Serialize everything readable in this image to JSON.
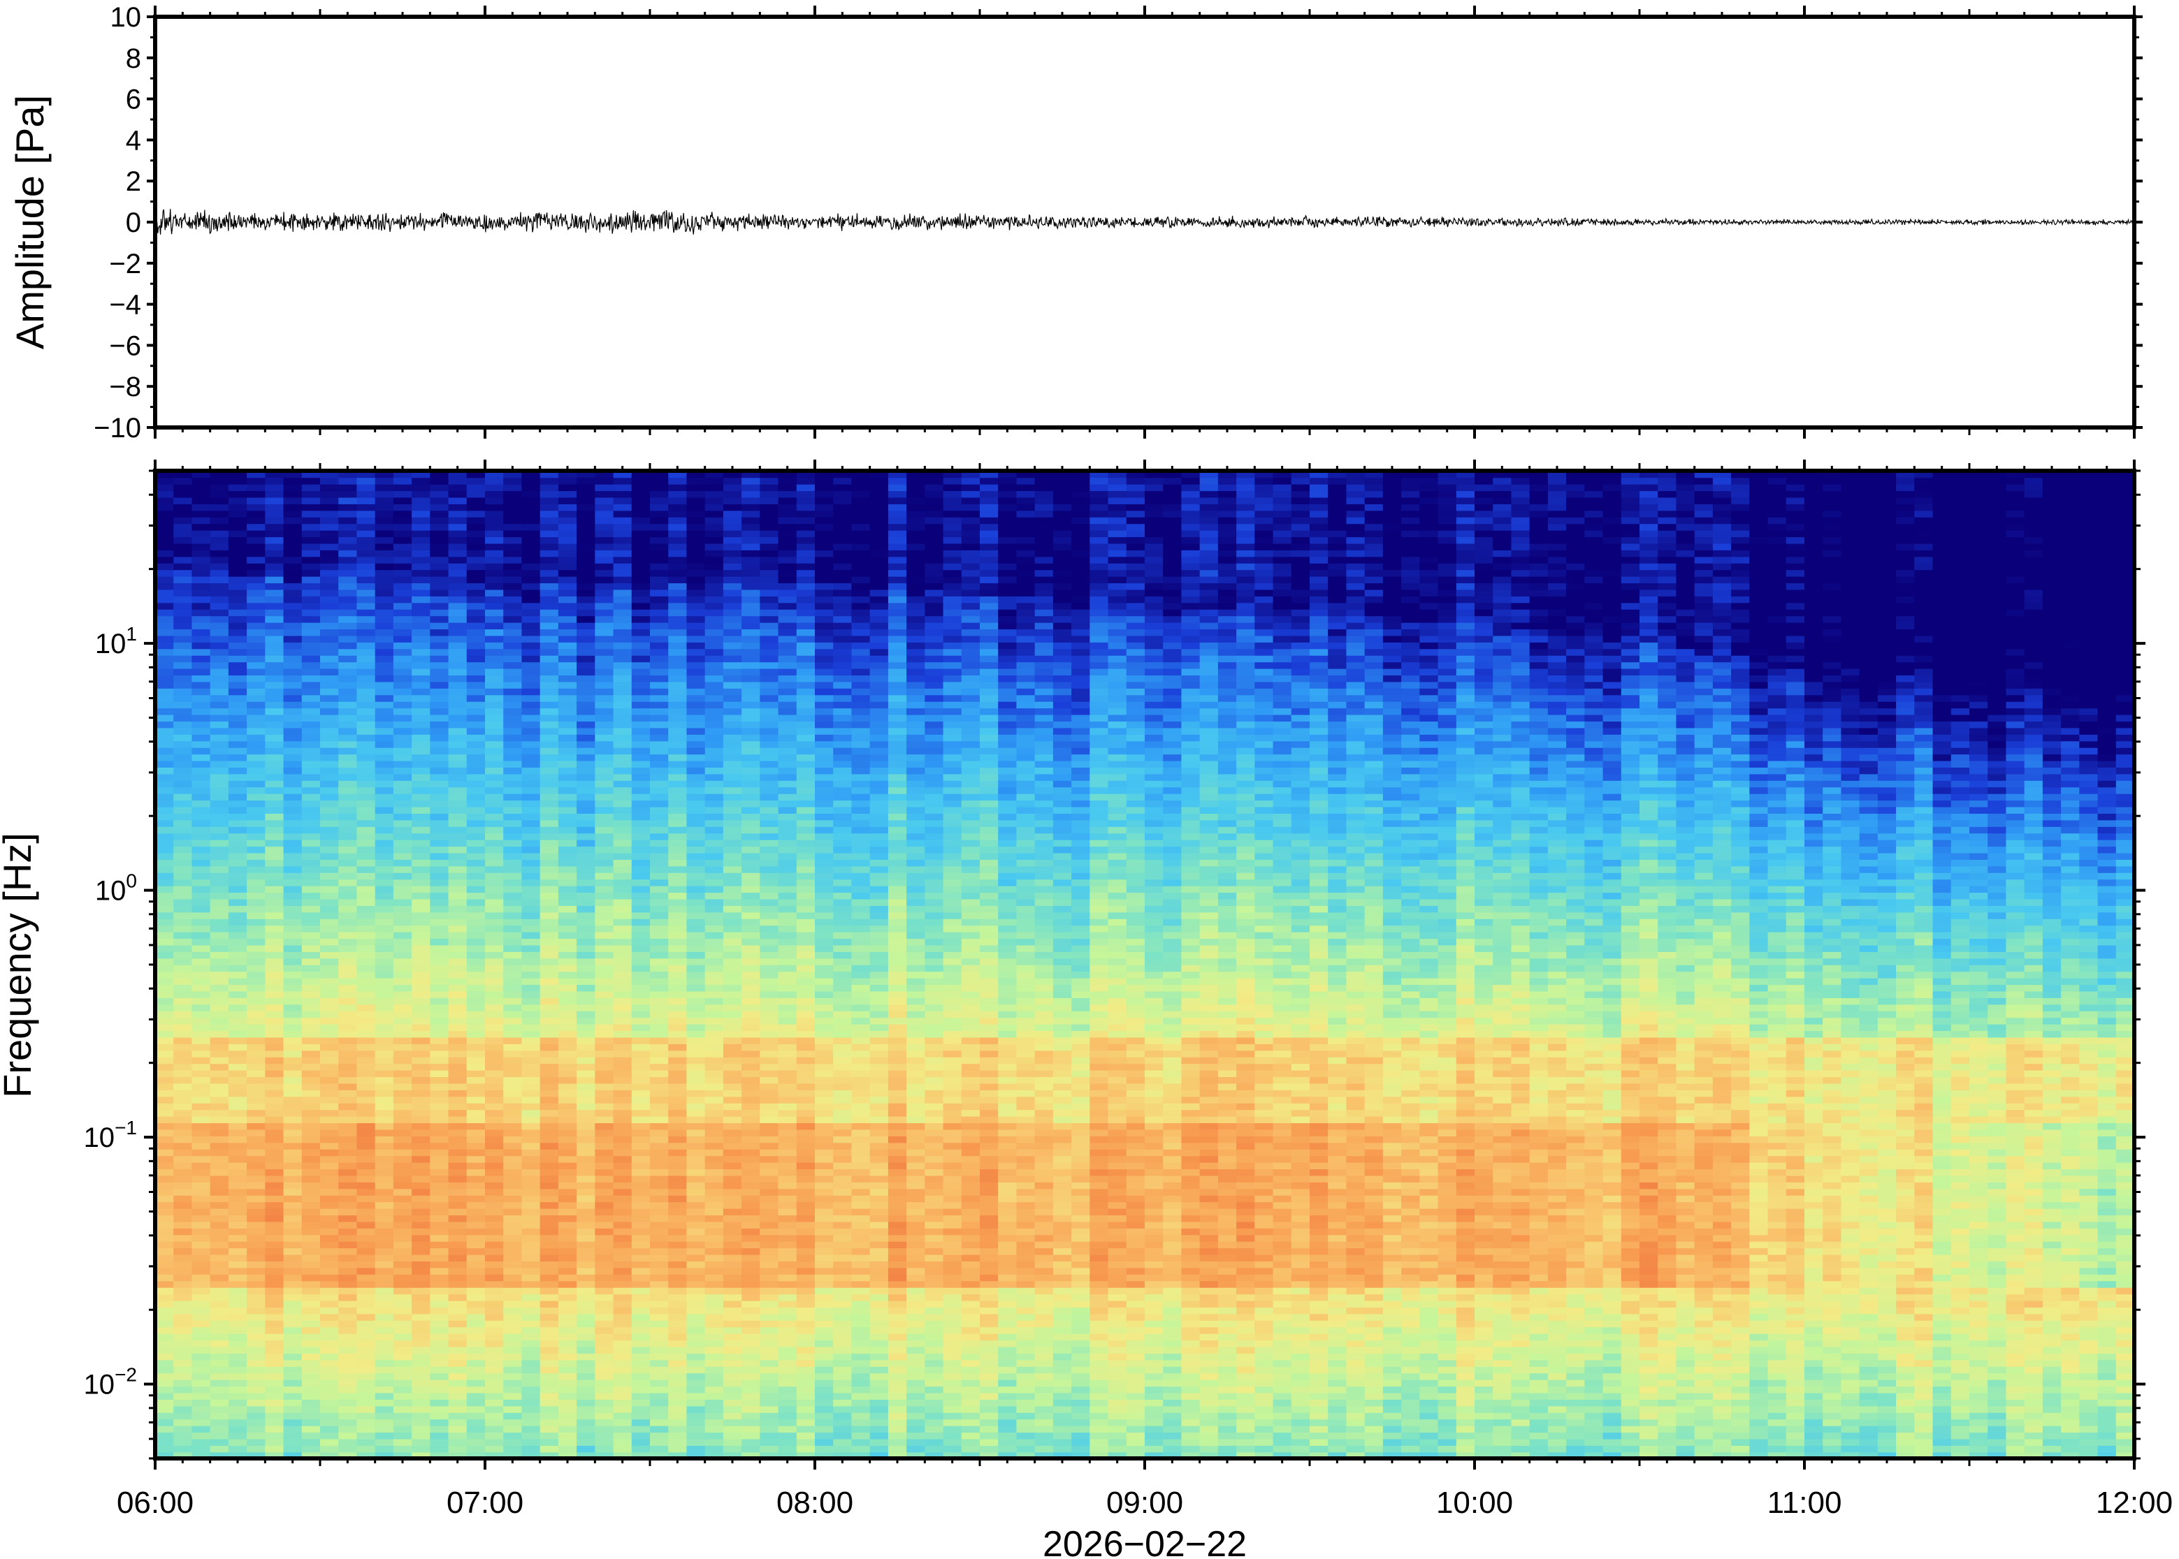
{
  "chart_data": [
    {
      "type": "line",
      "panel": "waveform",
      "ylabel": "Amplitude [Pa]",
      "ylim": [
        -10,
        10
      ],
      "yticks": [
        10,
        8,
        6,
        4,
        2,
        0,
        -2,
        -4,
        -6,
        -8,
        -10
      ],
      "ytick_labels": [
        "10",
        "8",
        "6",
        "4",
        "2",
        "0",
        "−2",
        "−4",
        "−6",
        "−8",
        "−10"
      ],
      "x_range": [
        "06:00",
        "12:00"
      ],
      "envelope_hours": [
        6.0,
        6.5,
        7.0,
        7.5,
        8.0,
        8.5,
        9.0,
        9.5,
        10.0,
        10.5,
        11.0,
        11.5,
        12.0
      ],
      "envelope_pa": [
        0.45,
        0.35,
        0.35,
        0.45,
        0.3,
        0.3,
        0.22,
        0.22,
        0.2,
        0.12,
        0.1,
        0.1,
        0.1
      ],
      "color": "#000000"
    },
    {
      "type": "heatmap",
      "panel": "spectrogram",
      "ylabel": "Frequency [Hz]",
      "yscale": "log",
      "ylim": [
        0.005,
        50
      ],
      "yticks": [
        0.01,
        0.1,
        1,
        10
      ],
      "ytick_labels": [
        {
          "base": "10",
          "exp": "−2"
        },
        {
          "base": "10",
          "exp": "−1"
        },
        {
          "base": "10",
          "exp": "0"
        },
        {
          "base": "10",
          "exp": "1"
        }
      ],
      "xticks": [
        "06:00",
        "07:00",
        "08:00",
        "09:00",
        "10:00",
        "11:00",
        "12:00"
      ],
      "xlabel": "2026−02−22",
      "colormap": [
        "#0a007a",
        "#1a3fd8",
        "#2f9af5",
        "#49c9f0",
        "#7ee3c5",
        "#c6f59a",
        "#f2ec86",
        "#f9c06a",
        "#f79a4f",
        "#ee6a3a"
      ],
      "time_hours": [
        6.0,
        7.0,
        8.0,
        9.0,
        10.0,
        11.0,
        12.0
      ],
      "energy_cutoff_hz": [
        20,
        17,
        18,
        14,
        12,
        8,
        6
      ],
      "peak_band_hz": [
        0.03,
        0.12
      ],
      "microbarom_band_hz": [
        0.15,
        0.25
      ]
    }
  ]
}
